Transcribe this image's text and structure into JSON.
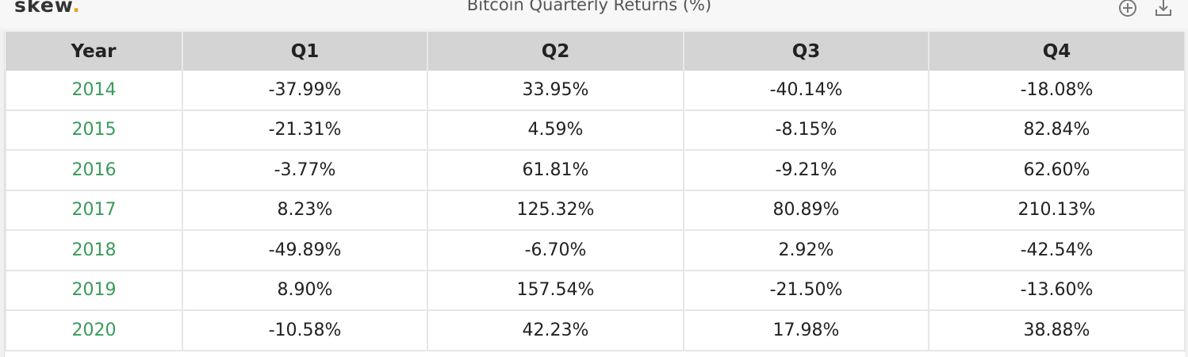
{
  "header": {
    "logo": {
      "name": "skew",
      "dot": "."
    },
    "title": "Bitcoin Quarterly Returns (%)"
  },
  "table": {
    "columns": [
      "Year",
      "Q1",
      "Q2",
      "Q3",
      "Q4"
    ],
    "rows": [
      [
        "2014",
        "-37.99%",
        "33.95%",
        "-40.14%",
        "-18.08%"
      ],
      [
        "2015",
        "-21.31%",
        "4.59%",
        "-8.15%",
        "82.84%"
      ],
      [
        "2016",
        "-3.77%",
        "61.81%",
        "-9.21%",
        "62.60%"
      ],
      [
        "2017",
        "8.23%",
        "125.32%",
        "80.89%",
        "210.13%"
      ],
      [
        "2018",
        "-49.89%",
        "-6.70%",
        "2.92%",
        "-42.54%"
      ],
      [
        "2019",
        "8.90%",
        "157.54%",
        "-21.50%",
        "-13.60%"
      ],
      [
        "2020",
        "-10.58%",
        "42.23%",
        "17.98%",
        "38.88%"
      ]
    ]
  }
}
